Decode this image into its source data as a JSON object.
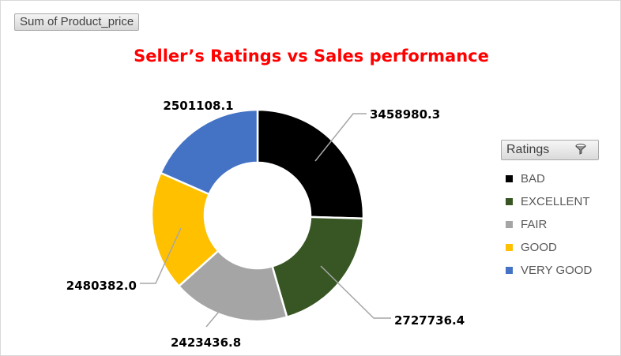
{
  "field_button": {
    "label": "Sum of Product_price"
  },
  "chart_data": {
    "type": "doughnut",
    "title": "Seller’s Ratings vs Sales performance",
    "categories": [
      "BAD",
      "EXCELLENT",
      "FAIR",
      "GOOD",
      "VERY GOOD"
    ],
    "values": [
      3458980.3,
      2727736.4,
      2423436.8,
      2480382.0,
      2501108.1
    ],
    "data_labels": [
      "3458980.3",
      "2727736.4",
      "2423436.8",
      "2480382.0",
      "2501108.1"
    ],
    "colors": [
      "#000000",
      "#375623",
      "#a5a5a5",
      "#ffc000",
      "#4472c4"
    ],
    "legend_position": "right"
  },
  "legend": {
    "header": "Ratings",
    "filter_icon": "filter-icon"
  }
}
